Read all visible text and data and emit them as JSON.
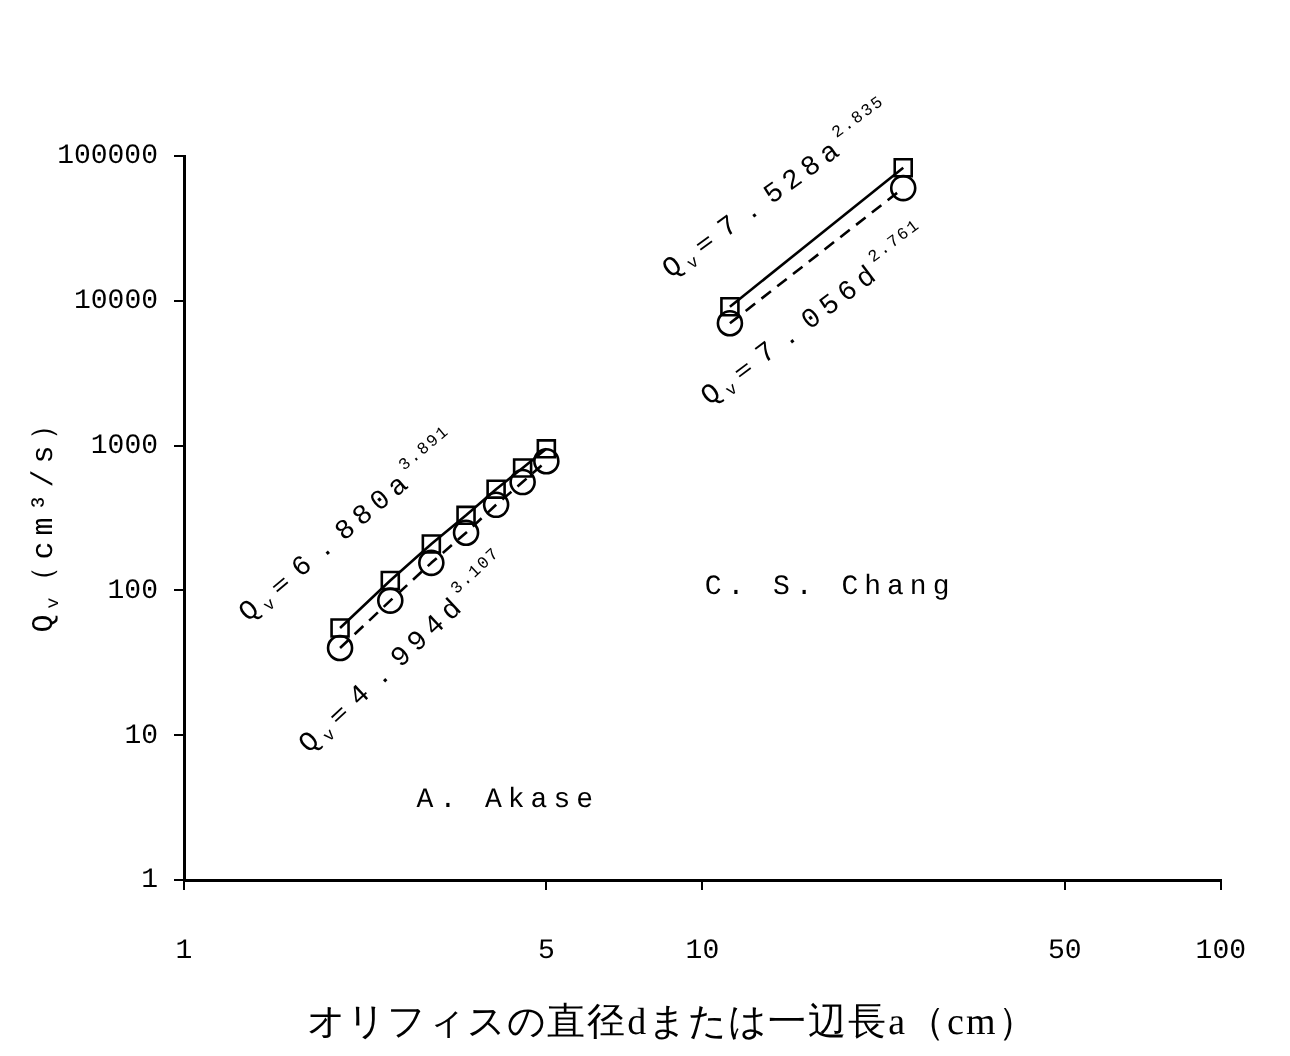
{
  "chart_data": {
    "type": "line",
    "xlabel": "オリフィスの直径dまたは一辺長a（cm）",
    "ylabel": "Q$_{v}$（cm³/s）",
    "log": "xy",
    "xlim": [
      1,
      100
    ],
    "ylim": [
      1,
      100000
    ],
    "xticks": [
      1,
      5,
      10,
      50,
      100
    ],
    "yticks": [
      1,
      10,
      100,
      1000,
      10000,
      100000
    ],
    "series": [
      {
        "x": [
          2,
          2.5,
          3,
          3.5,
          4,
          4.5,
          5
        ],
        "values": [
          55,
          117,
          209,
          330,
          500,
          700,
          950
        ],
        "color": "#000000",
        "marker": "square",
        "line_style": "solid"
      },
      {
        "x": [
          2,
          2.5,
          3,
          3.5,
          4,
          4.5,
          5
        ],
        "values": [
          40,
          85,
          155,
          250,
          390,
          560,
          780
        ],
        "color": "#000000",
        "marker": "circle",
        "line_style": "dashed"
      },
      {
        "x": [
          11.3,
          24.4
        ],
        "values": [
          9100,
          83000
        ],
        "color": "#000000",
        "marker": "square",
        "line_style": "solid"
      },
      {
        "x": [
          11.3,
          24.4
        ],
        "values": [
          7000,
          60000
        ],
        "color": "#000000",
        "marker": "circle",
        "line_style": "dashed"
      }
    ],
    "annotations": [
      "Q$_{v}$＝6．880a$^{3.891}$",
      "Q$_{v}$＝4．994d$^{3.107}$",
      "Q$_{v}$＝7．528a$^{2.835}$",
      "Q$_{v}$＝7．056d$^{2.761}$",
      "A. Akase",
      "C. S. Chang"
    ]
  }
}
